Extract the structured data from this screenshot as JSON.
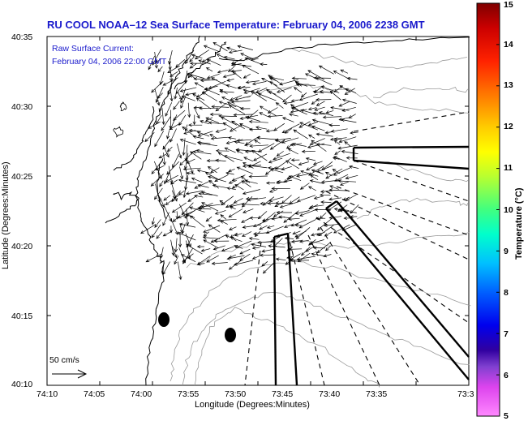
{
  "title": "RU COOL  NOAA–12  Sea Surface Temperature:  February 04, 2006 2238 GMT",
  "annotation": {
    "line1": "Raw Surface Current:",
    "line2": "February 04, 2006 22:00 GMT"
  },
  "scale_label": "50 cm/s",
  "axes": {
    "xlabel": "Longitude (Degrees:Minutes)",
    "ylabel": "Latitude (Degrees:Minutes)",
    "xticks": [
      "74:10",
      "74:05",
      "74:00",
      "73:55",
      "73:50",
      "73:45",
      "73:40",
      "73:35",
      "73:3"
    ],
    "yticks": [
      "40:35",
      "40:30",
      "40:25",
      "40:20",
      "40:15",
      "40:10"
    ]
  },
  "colorbar": {
    "label": "Temperature (°C)",
    "ticks": [
      "15",
      "14",
      "13",
      "12",
      "11",
      "10",
      "9",
      "8",
      "7",
      "6",
      "5"
    ],
    "range": [
      5,
      15
    ]
  },
  "colors": {
    "title": "#1a1acc",
    "coast": "#000000",
    "contours": "#9a9a9a",
    "arrows": "#000000"
  }
}
